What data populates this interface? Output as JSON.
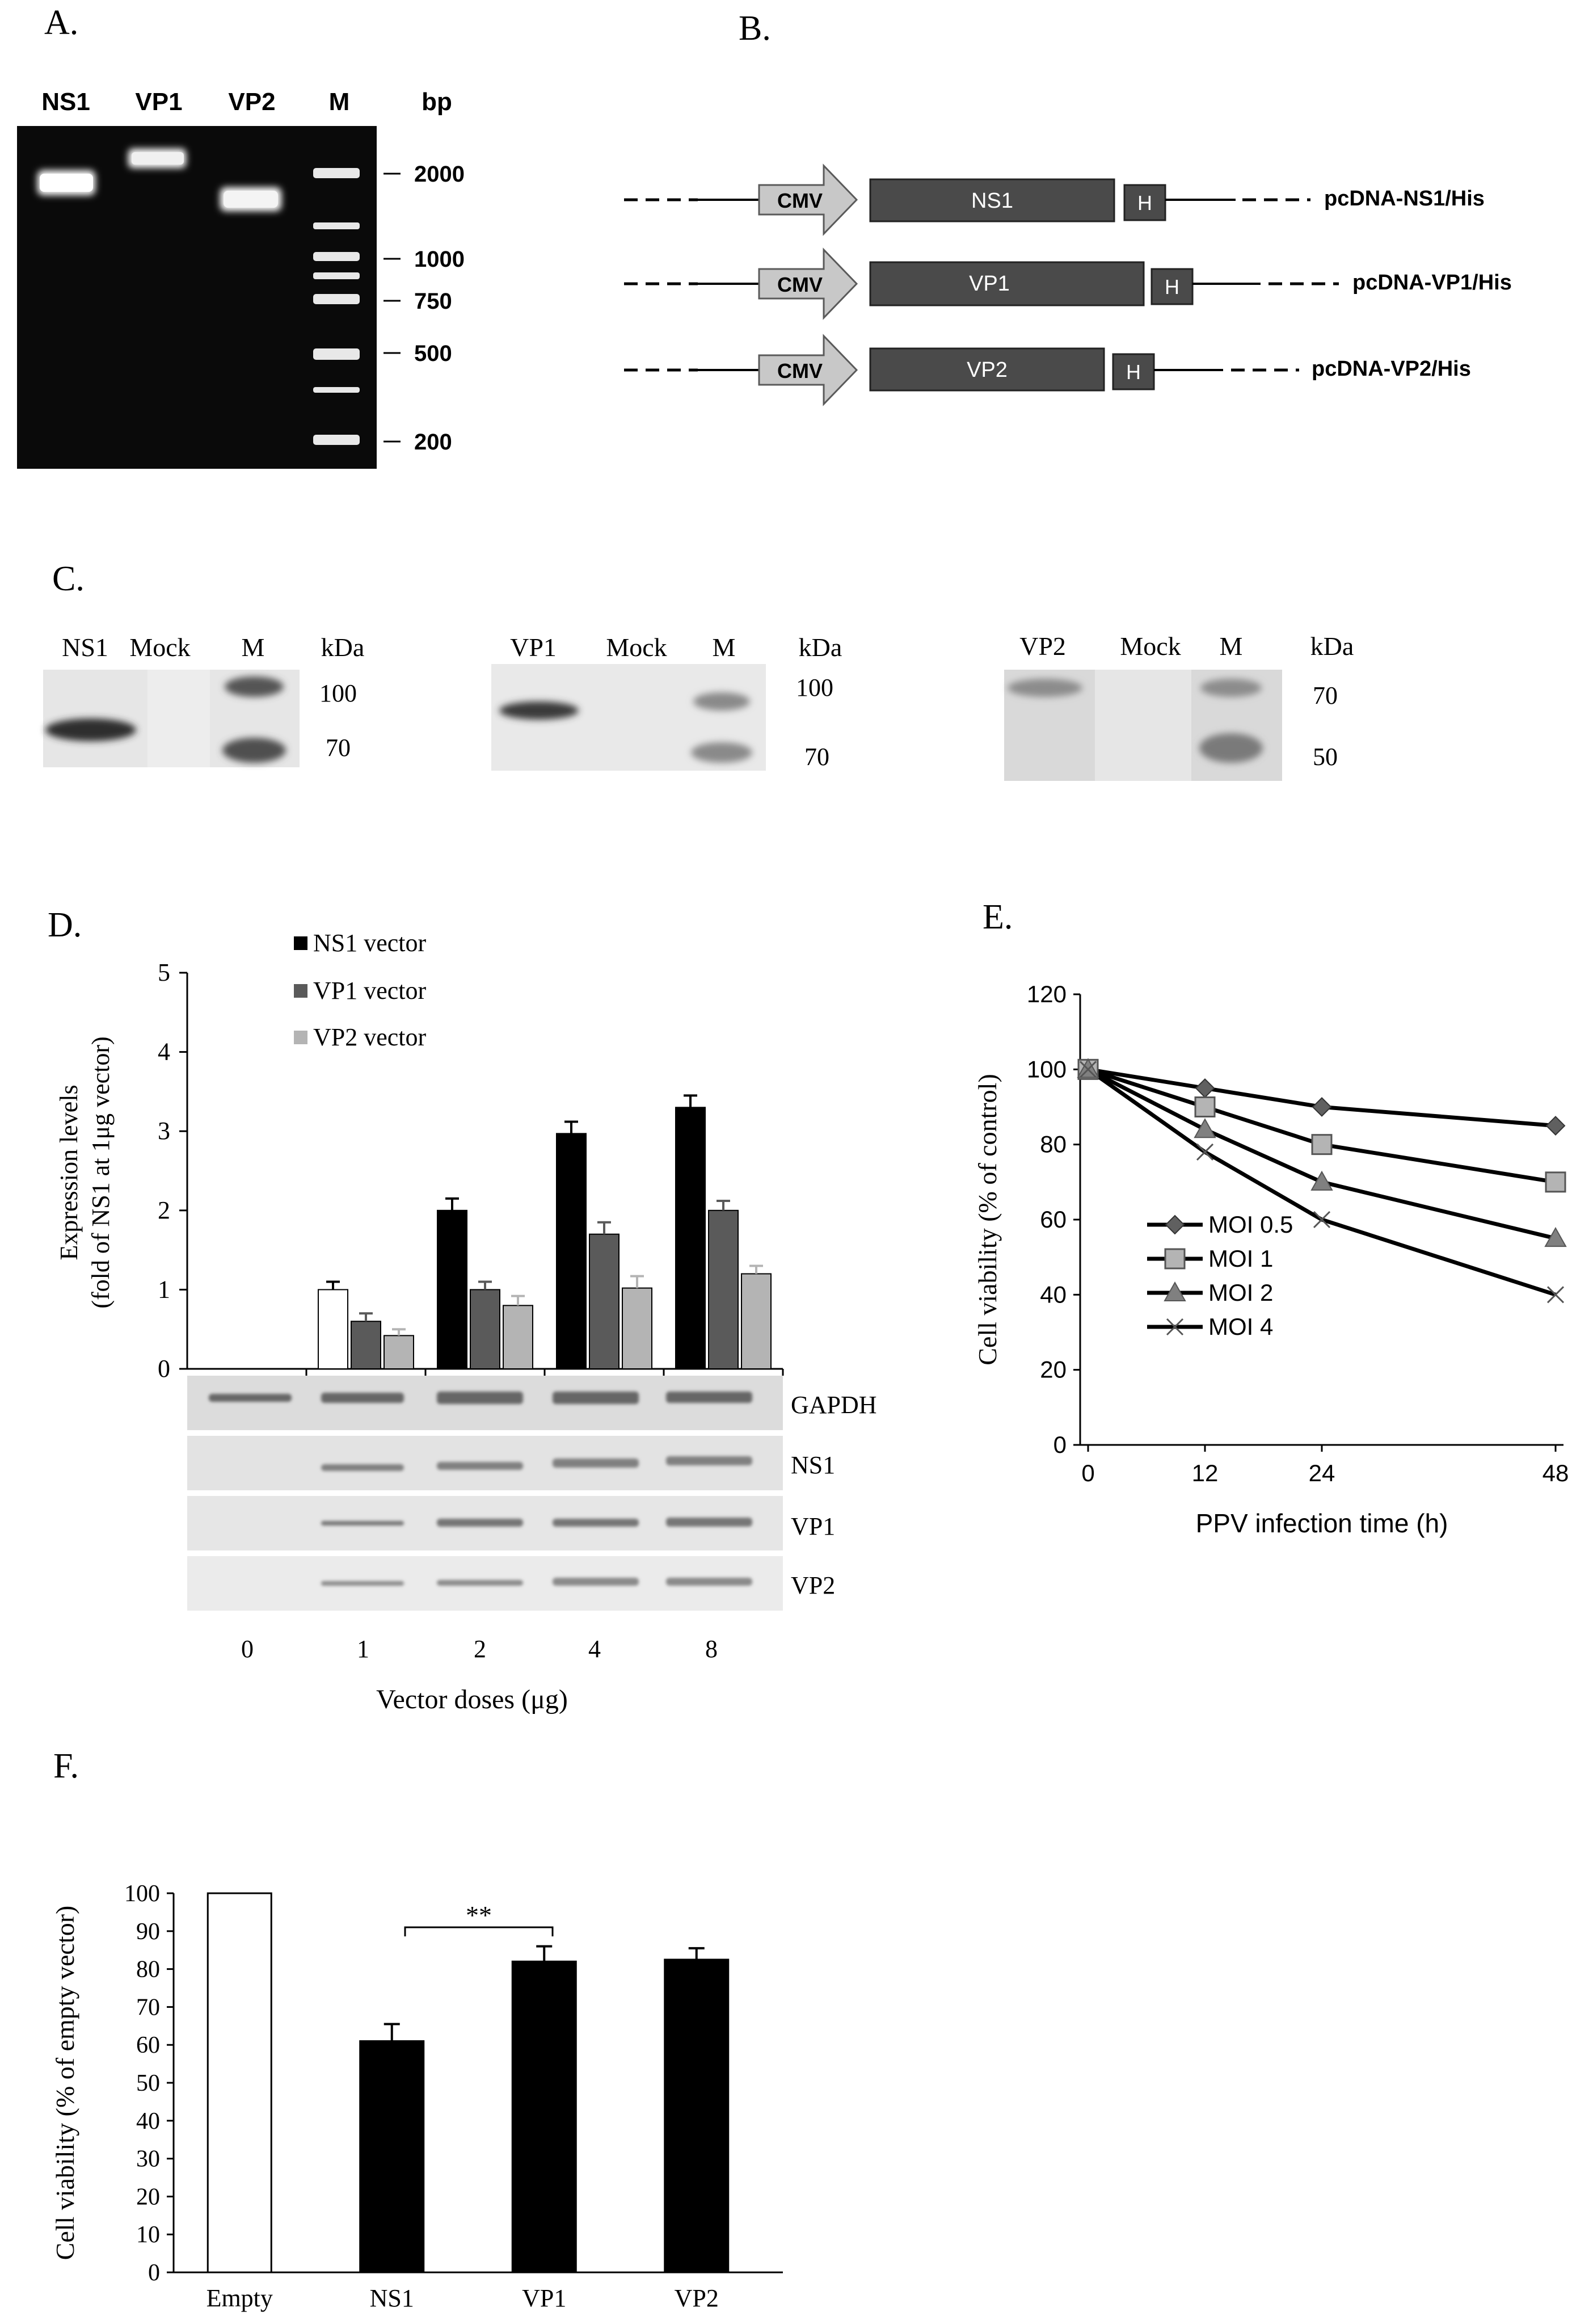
{
  "panels": {
    "A": {
      "label": "A.",
      "lanes": [
        "NS1",
        "VP1",
        "VP2",
        "M"
      ],
      "unit": "bp",
      "markers": [
        "2000",
        "1000",
        "750",
        "500",
        "200"
      ]
    },
    "B": {
      "label": "B.",
      "constructs": [
        {
          "promoter": "CMV",
          "gene": "NS1",
          "tag": "H",
          "name": "pcDNA-NS1/His"
        },
        {
          "promoter": "CMV",
          "gene": "VP1",
          "tag": "H",
          "name": "pcDNA-VP1/His"
        },
        {
          "promoter": "CMV",
          "gene": "VP2",
          "tag": "H",
          "name": "pcDNA-VP2/His"
        }
      ]
    },
    "C": {
      "label": "C.",
      "blots": [
        {
          "lanes": [
            "NS1",
            "Mock",
            "M"
          ],
          "unit": "kDa",
          "markers": [
            "100",
            "70"
          ]
        },
        {
          "lanes": [
            "VP1",
            "Mock",
            "M"
          ],
          "unit": "kDa",
          "markers": [
            "100",
            "70"
          ]
        },
        {
          "lanes": [
            "VP2",
            "Mock",
            "M"
          ],
          "unit": "kDa",
          "markers": [
            "70",
            "50"
          ]
        }
      ]
    },
    "D": {
      "label": "D.",
      "blot_rows": [
        "GAPDH",
        "NS1",
        "VP1",
        "VP2"
      ]
    },
    "E": {
      "label": "E."
    },
    "F": {
      "label": "F.",
      "significance": "**"
    }
  },
  "chart_data": [
    {
      "id": "D",
      "type": "bar",
      "categories": [
        "0",
        "1",
        "2",
        "4",
        "8"
      ],
      "series": [
        {
          "name": "NS1 vector",
          "values": [
            0,
            1.0,
            2.0,
            2.97,
            3.3
          ],
          "errors": [
            0,
            0.1,
            0.15,
            0.15,
            0.15
          ],
          "color": "#000000"
        },
        {
          "name": "VP1 vector",
          "values": [
            0,
            0.6,
            1.0,
            1.7,
            2.0
          ],
          "errors": [
            0,
            0.1,
            0.1,
            0.15,
            0.12
          ],
          "color": "#5a5a5a"
        },
        {
          "name": "VP2 vector",
          "values": [
            0,
            0.42,
            0.8,
            1.02,
            1.2
          ],
          "errors": [
            0,
            0.08,
            0.12,
            0.15,
            0.1
          ],
          "color": "#b4b4b4"
        }
      ],
      "ylabel_line1": "Expression levels",
      "ylabel_line2": "(fold of NS1 at 1μg vector)",
      "xlabel": "Vector doses (μg)",
      "ylim": [
        0,
        5
      ],
      "yticks": [
        "0",
        "1",
        "2",
        "3",
        "4",
        "5"
      ]
    },
    {
      "id": "E",
      "type": "line",
      "x": [
        0,
        12,
        24,
        48
      ],
      "xticks": [
        "0",
        "12",
        "24",
        "48"
      ],
      "series": [
        {
          "name": "MOI 0.5",
          "values": [
            100,
            95,
            90,
            85
          ],
          "marker": "diamond"
        },
        {
          "name": "MOI 1",
          "values": [
            100,
            90,
            80,
            70
          ],
          "marker": "square"
        },
        {
          "name": "MOI 2",
          "values": [
            100,
            84,
            70,
            55
          ],
          "marker": "triangle"
        },
        {
          "name": "MOI 4",
          "values": [
            100,
            78,
            60,
            40
          ],
          "marker": "x"
        }
      ],
      "xlabel": "PPV infection time (h)",
      "ylabel": "Cell viability (% of control)",
      "ylim": [
        0,
        120
      ],
      "yticks": [
        "0",
        "20",
        "40",
        "60",
        "80",
        "100",
        "120"
      ]
    },
    {
      "id": "F",
      "type": "bar",
      "categories": [
        "Empty",
        "NS1",
        "VP1",
        "VP2"
      ],
      "values": [
        100,
        61,
        82,
        82.5
      ],
      "errors": [
        0,
        4.5,
        4,
        3
      ],
      "fills": [
        "#ffffff",
        "#000000",
        "#000000",
        "#000000"
      ],
      "ylabel": "Cell viability (% of empty vector)",
      "ylim": [
        0,
        100
      ],
      "yticks": [
        "0",
        "10",
        "20",
        "30",
        "40",
        "50",
        "60",
        "70",
        "80",
        "90",
        "100"
      ]
    }
  ]
}
